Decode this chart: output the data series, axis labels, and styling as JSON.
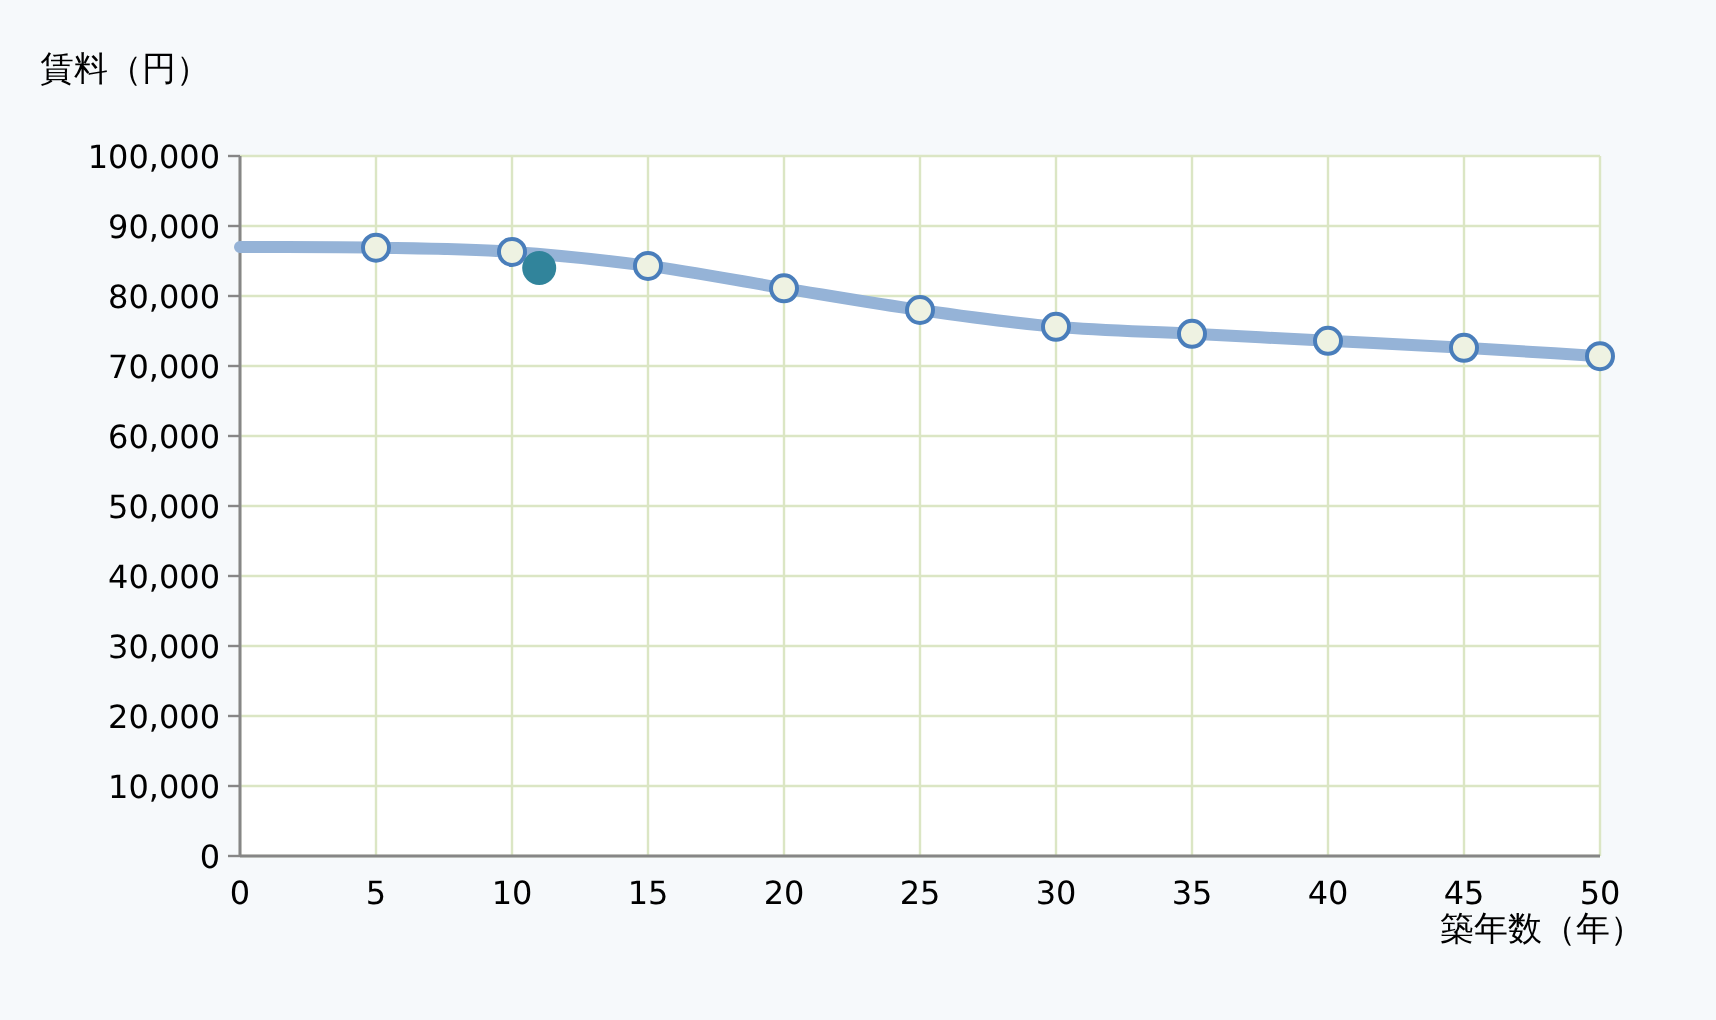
{
  "chart_data": {
    "type": "line",
    "xlabel": "築年数（年）",
    "ylabel": "賃料（円）",
    "xlim": [
      0,
      50
    ],
    "ylim": [
      0,
      100000
    ],
    "xticks": [
      0,
      5,
      10,
      15,
      20,
      25,
      30,
      35,
      40,
      45,
      50
    ],
    "yticks": [
      0,
      {
        "value": 10000,
        "label": "10,000"
      },
      {
        "value": 20000,
        "label": "20,000"
      },
      {
        "value": 30000,
        "label": "30,000"
      },
      {
        "value": 40000,
        "label": "40,000"
      },
      {
        "value": 50000,
        "label": "50,000"
      },
      {
        "value": 60000,
        "label": "60,000"
      },
      {
        "value": 70000,
        "label": "70,000"
      },
      {
        "value": 80000,
        "label": "80,000"
      },
      {
        "value": 90000,
        "label": "90,000"
      },
      {
        "value": 100000,
        "label": "100,000"
      }
    ],
    "grid": true,
    "series": [
      {
        "marker": "none",
        "color": "#95b3d7",
        "x": [
          0,
          5,
          10,
          15,
          20,
          25,
          30,
          35,
          40,
          45,
          50
        ],
        "values": [
          87000,
          86900,
          86300,
          84300,
          81100,
          78000,
          75600,
          74600,
          73600,
          72600,
          71400
        ]
      },
      {
        "type": "scatter",
        "marker": "circle",
        "color": "#4a7ebb",
        "x": [
          5,
          10,
          15,
          20,
          25,
          30,
          35,
          40,
          45,
          50
        ],
        "values": [
          86900,
          86300,
          84300,
          81100,
          78000,
          75600,
          74600,
          73600,
          72600,
          71400
        ]
      },
      {
        "type": "scatter",
        "marker": "circle",
        "color": "#31849b",
        "x": [
          11
        ],
        "values": [
          84000
        ]
      }
    ]
  }
}
